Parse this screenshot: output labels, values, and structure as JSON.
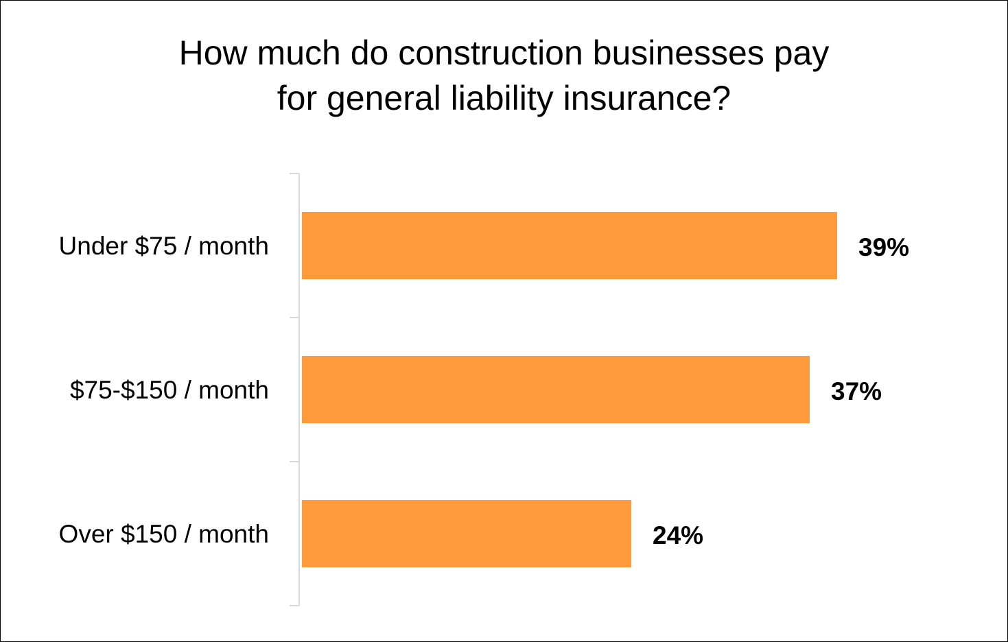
{
  "chart_data": {
    "type": "bar",
    "orientation": "horizontal",
    "title_lines": [
      "How much do construction businesses pay",
      "for general liability insurance?"
    ],
    "categories": [
      "Under $75 / month",
      "$75-$150 / month",
      "Over $150 / month"
    ],
    "values": [
      39,
      37,
      24
    ],
    "value_labels": [
      "39%",
      "37%",
      "24%"
    ],
    "xlim": [
      0,
      50
    ],
    "unit": "%",
    "grid": false,
    "legend": "none",
    "bar_color": "#FF9A3C",
    "axis_color": "#D9D9D9"
  }
}
